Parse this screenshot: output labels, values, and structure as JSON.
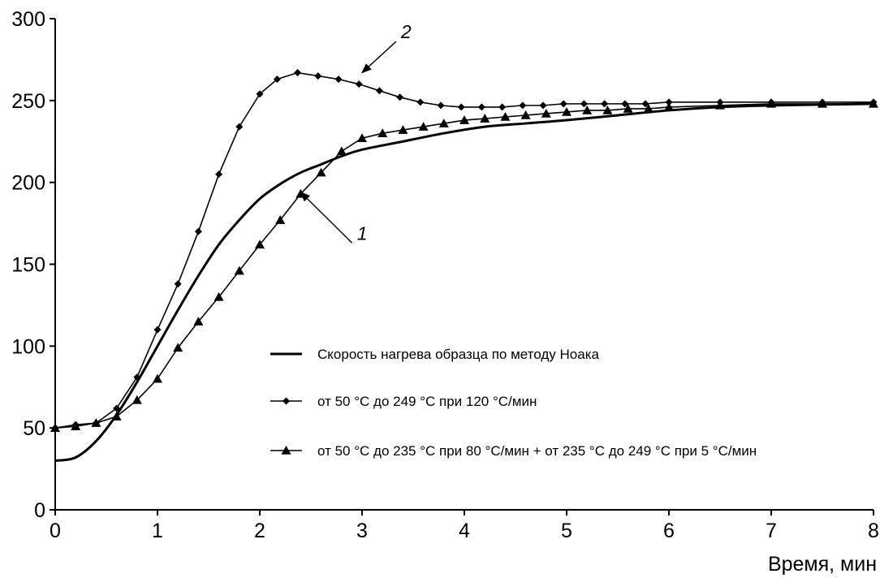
{
  "chart_data": {
    "type": "line",
    "xlabel": "Время, мин",
    "ylabel": "",
    "xlim": [
      0,
      8
    ],
    "ylim": [
      0,
      300
    ],
    "x_ticks": [
      "0",
      "1",
      "2",
      "3",
      "4",
      "5",
      "6",
      "7",
      "8"
    ],
    "y_ticks": [
      "0",
      "50",
      "100",
      "150",
      "200",
      "250",
      "300"
    ],
    "grid": false,
    "legend_position": "lower-right",
    "series": [
      {
        "name": "Скорость нагрева образца по методу Ноака",
        "marker": "none",
        "color": "#000000",
        "x": [
          0,
          0.2,
          0.4,
          0.6,
          0.8,
          1.0,
          1.2,
          1.4,
          1.6,
          1.8,
          2.0,
          2.2,
          2.4,
          2.6,
          2.8,
          3.0,
          3.4,
          3.8,
          4.2,
          4.6,
          5.0,
          5.5,
          6.0,
          6.5,
          7.0,
          8.0
        ],
        "y": [
          30,
          32,
          42,
          58,
          78,
          100,
          122,
          143,
          162,
          177,
          190,
          199,
          206,
          211,
          216,
          220,
          225,
          230,
          234,
          236,
          238,
          241,
          244,
          246,
          247,
          248
        ]
      },
      {
        "name": "от 50 °С до 249 °С при 120 °С/мин",
        "marker": "diamond",
        "color": "#000000",
        "x": [
          0,
          0.2,
          0.4,
          0.6,
          0.8,
          1.0,
          1.2,
          1.4,
          1.6,
          1.8,
          2.0,
          2.17,
          2.37,
          2.57,
          2.77,
          2.97,
          3.17,
          3.37,
          3.57,
          3.77,
          3.97,
          4.17,
          4.37,
          4.57,
          4.77,
          4.97,
          5.17,
          5.37,
          5.57,
          5.77,
          6.0,
          6.5,
          7.0,
          7.5,
          8.0
        ],
        "y": [
          50,
          52,
          53,
          62,
          81,
          110,
          138,
          170,
          205,
          234,
          254,
          263,
          267,
          265,
          263,
          260,
          256,
          252,
          249,
          247,
          246,
          246,
          246,
          247,
          247,
          248,
          248,
          248,
          248,
          248,
          249,
          249,
          249,
          249,
          249
        ]
      },
      {
        "name": "от 50 °С до 235 °С при 80 °С/мин + от 235 °С до 249 °С при 5 °С/мин",
        "marker": "triangle",
        "color": "#000000",
        "x": [
          0,
          0.2,
          0.4,
          0.6,
          0.8,
          1.0,
          1.2,
          1.4,
          1.6,
          1.8,
          2.0,
          2.2,
          2.4,
          2.6,
          2.8,
          3.0,
          3.2,
          3.4,
          3.6,
          3.8,
          4.0,
          4.2,
          4.4,
          4.6,
          4.8,
          5.0,
          5.2,
          5.4,
          5.6,
          5.8,
          6.0,
          6.5,
          7.0,
          7.5,
          8.0
        ],
        "y": [
          50,
          51,
          53,
          57,
          67,
          80,
          99,
          115,
          130,
          146,
          162,
          177,
          193,
          206,
          219,
          227,
          230,
          232,
          234,
          236,
          238,
          239,
          240,
          241,
          242,
          243,
          244,
          244,
          245,
          245,
          246,
          247,
          248,
          248,
          248
        ]
      }
    ],
    "annotations": [
      {
        "text": "2",
        "x": 3.38,
        "y": 288,
        "arrow_to": [
          3.0,
          267
        ]
      },
      {
        "text": "1",
        "x": 2.95,
        "y": 165,
        "arrow_to": [
          2.4,
          194
        ]
      }
    ]
  }
}
